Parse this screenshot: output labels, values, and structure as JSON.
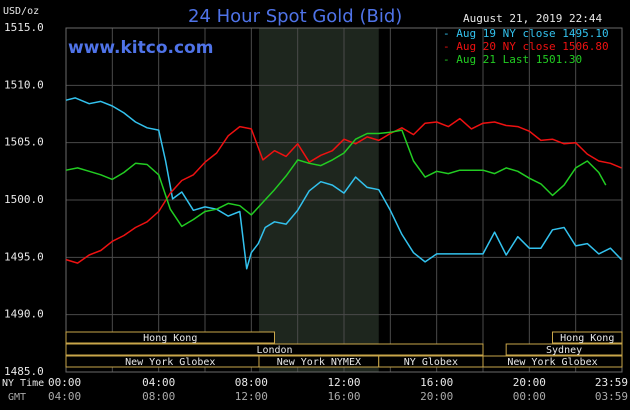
{
  "title": "24 Hour Spot Gold (Bid)",
  "website": "www.kitco.com",
  "timestamp": "August 21, 2019 22:44",
  "units": "USD/oz",
  "legend": [
    {
      "label": "Aug 19 NY close 1495.10",
      "color": "#33c2ee"
    },
    {
      "label": "Aug 20 NY close 1506.80",
      "color": "#ee1111"
    },
    {
      "label": "Aug 21 Last 1501.30",
      "color": "#22cc22"
    }
  ],
  "market_sessions": [
    {
      "name": "Hong Kong",
      "start_h": 0,
      "end_h": 9
    },
    {
      "name": "London",
      "start_h": 0,
      "end_h": 18
    },
    {
      "name": "New York Globex",
      "start_h": 0,
      "end_h": 9
    },
    {
      "name": "New York NYMEX",
      "start_h": 8.33,
      "end_h": 13.5
    },
    {
      "name": "NY Globex",
      "start_h": 13.5,
      "end_h": 18
    },
    {
      "name": "Hong Kong",
      "start_h": 21,
      "end_h": 24
    },
    {
      "name": "Sydney",
      "start_h": 19,
      "end_h": 24
    },
    {
      "name": "New York Globex",
      "start_h": 18,
      "end_h": 24
    }
  ],
  "nymex_shading": {
    "start_h": 8.33,
    "end_h": 13.5
  },
  "x_ticks_ny": [
    "00:00",
    "04:00",
    "08:00",
    "12:00",
    "16:00",
    "20:00",
    "23:59"
  ],
  "x_ticks_gmt": [
    "04:00",
    "08:00",
    "12:00",
    "16:00",
    "20:00",
    "00:00",
    "03:59"
  ],
  "x_tick_hours": [
    0,
    4,
    8,
    12,
    16,
    20,
    23.98
  ],
  "row_label_ny": "NY Time",
  "row_label_gmt": "GMT",
  "chart_data": {
    "type": "line",
    "title": "24 Hour Spot Gold (Bid)",
    "xlabel": "NY Time",
    "ylabel": "USD/oz",
    "xlim": [
      0,
      24
    ],
    "ylim": [
      1485,
      1515
    ],
    "yticks": [
      1485.0,
      1490.0,
      1495.0,
      1500.0,
      1505.0,
      1510.0,
      1515.0
    ],
    "ytick_labels": [
      "1485.0",
      "1490.0",
      "1495.0",
      "1500.0",
      "1505.0",
      "1510.0",
      "1515.0"
    ],
    "grid": true,
    "series": [
      {
        "name": "Aug 19 NY close 1495.10",
        "color": "#33c2ee",
        "x": [
          0,
          0.4,
          1,
          1.5,
          2,
          2.5,
          3,
          3.5,
          4,
          4.3,
          4.6,
          5,
          5.5,
          6,
          6.5,
          7,
          7.5,
          7.8,
          8,
          8.3,
          8.6,
          9,
          9.5,
          10,
          10.5,
          11,
          11.5,
          12,
          12.5,
          13,
          13.5,
          14,
          14.5,
          15,
          15.5,
          16,
          16.5,
          17,
          17.5,
          18,
          18.5,
          19,
          19.5,
          20,
          20.5,
          21,
          21.5,
          22,
          22.5,
          23,
          23.5,
          23.98
        ],
        "y": [
          1508.7,
          1508.9,
          1508.4,
          1508.6,
          1508.2,
          1507.6,
          1506.8,
          1506.3,
          1506.1,
          1503.4,
          1500.1,
          1500.7,
          1499.1,
          1499.4,
          1499.2,
          1498.6,
          1499.0,
          1494.0,
          1495.4,
          1496.2,
          1497.6,
          1498.1,
          1497.9,
          1499.1,
          1500.8,
          1501.6,
          1501.3,
          1500.6,
          1502.0,
          1501.1,
          1500.9,
          1499.1,
          1497.0,
          1495.4,
          1494.6,
          1495.3,
          1495.3,
          1495.3,
          1495.3,
          1495.3,
          1497.2,
          1495.2,
          1496.8,
          1495.8,
          1495.8,
          1497.4,
          1497.6,
          1496.0,
          1496.2,
          1495.3,
          1495.8,
          1494.8
        ]
      },
      {
        "name": "Aug 20 NY close 1506.80",
        "color": "#ee1111",
        "x": [
          0,
          0.5,
          1,
          1.5,
          2,
          2.5,
          3,
          3.5,
          4,
          4.5,
          5,
          5.5,
          6,
          6.5,
          7,
          7.5,
          8,
          8.5,
          9,
          9.5,
          10,
          10.5,
          11,
          11.5,
          12,
          12.5,
          13,
          13.5,
          14,
          14.5,
          15,
          15.5,
          16,
          16.5,
          17,
          17.5,
          18,
          18.5,
          19,
          19.5,
          20,
          20.5,
          21,
          21.5,
          22,
          22.5,
          23,
          23.5,
          23.98
        ],
        "y": [
          1494.8,
          1494.5,
          1495.2,
          1495.6,
          1496.4,
          1496.9,
          1497.6,
          1498.1,
          1499.0,
          1500.6,
          1501.7,
          1502.2,
          1503.3,
          1504.1,
          1505.6,
          1506.4,
          1506.2,
          1503.5,
          1504.3,
          1503.8,
          1504.9,
          1503.3,
          1503.9,
          1504.3,
          1505.3,
          1504.9,
          1505.5,
          1505.2,
          1505.8,
          1506.3,
          1505.7,
          1506.7,
          1506.8,
          1506.4,
          1507.1,
          1506.2,
          1506.7,
          1506.8,
          1506.5,
          1506.4,
          1506.0,
          1505.2,
          1505.3,
          1504.9,
          1505.0,
          1504.0,
          1503.4,
          1503.2,
          1502.8
        ]
      },
      {
        "name": "Aug 21 Last 1501.30",
        "color": "#22cc22",
        "x": [
          0,
          0.5,
          1,
          1.5,
          2,
          2.5,
          3,
          3.5,
          4,
          4.5,
          5,
          5.5,
          6,
          6.5,
          7,
          7.5,
          8,
          8.5,
          9,
          9.5,
          10,
          10.5,
          11,
          11.5,
          12,
          12.5,
          13,
          13.5,
          14,
          14.5,
          15,
          15.5,
          16,
          16.5,
          17,
          17.5,
          18,
          18.5,
          19,
          19.5,
          20,
          20.5,
          21,
          21.5,
          22,
          22.5,
          23,
          23.3
        ],
        "y": [
          1502.6,
          1502.8,
          1502.5,
          1502.2,
          1501.8,
          1502.4,
          1503.2,
          1503.1,
          1502.2,
          1499.2,
          1497.7,
          1498.3,
          1499.0,
          1499.2,
          1499.7,
          1499.5,
          1498.7,
          1499.8,
          1500.9,
          1502.1,
          1503.5,
          1503.2,
          1503.0,
          1503.5,
          1504.1,
          1505.3,
          1505.8,
          1505.8,
          1505.9,
          1506.1,
          1503.4,
          1502.0,
          1502.5,
          1502.3,
          1502.6,
          1502.6,
          1502.6,
          1502.3,
          1502.8,
          1502.5,
          1501.9,
          1501.4,
          1500.4,
          1501.3,
          1502.8,
          1503.4,
          1502.4,
          1501.3
        ]
      }
    ]
  }
}
